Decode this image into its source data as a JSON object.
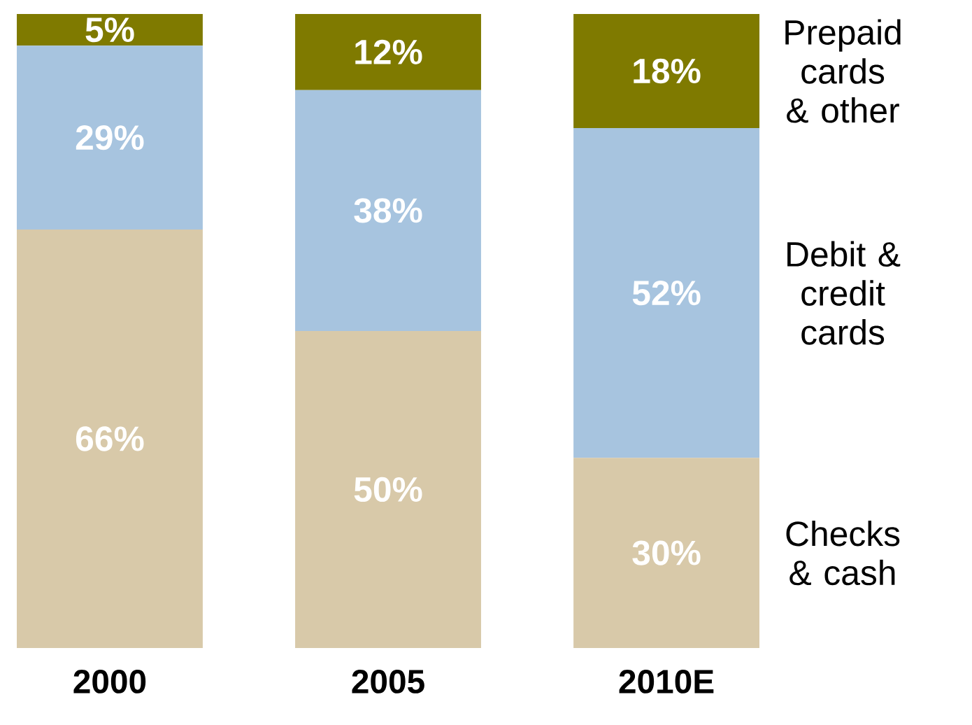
{
  "chart_data": {
    "type": "bar",
    "stacked": true,
    "categories": [
      "2000",
      "2005",
      "2010E"
    ],
    "series": [
      {
        "name": "Checks & cash",
        "color": "#d8c9a9",
        "values": [
          66,
          50,
          30
        ],
        "value_labels": [
          "66%",
          "50%",
          "30%"
        ]
      },
      {
        "name": "Debit & credit cards",
        "color": "#a7c4df",
        "values": [
          29,
          38,
          52
        ],
        "value_labels": [
          "29%",
          "38%",
          "52%"
        ]
      },
      {
        "name": "Prepaid cards & other",
        "color": "#7f7a00",
        "values": [
          5,
          12,
          18
        ],
        "value_labels": [
          "5%",
          "12%",
          "18%"
        ]
      }
    ]
  }
}
